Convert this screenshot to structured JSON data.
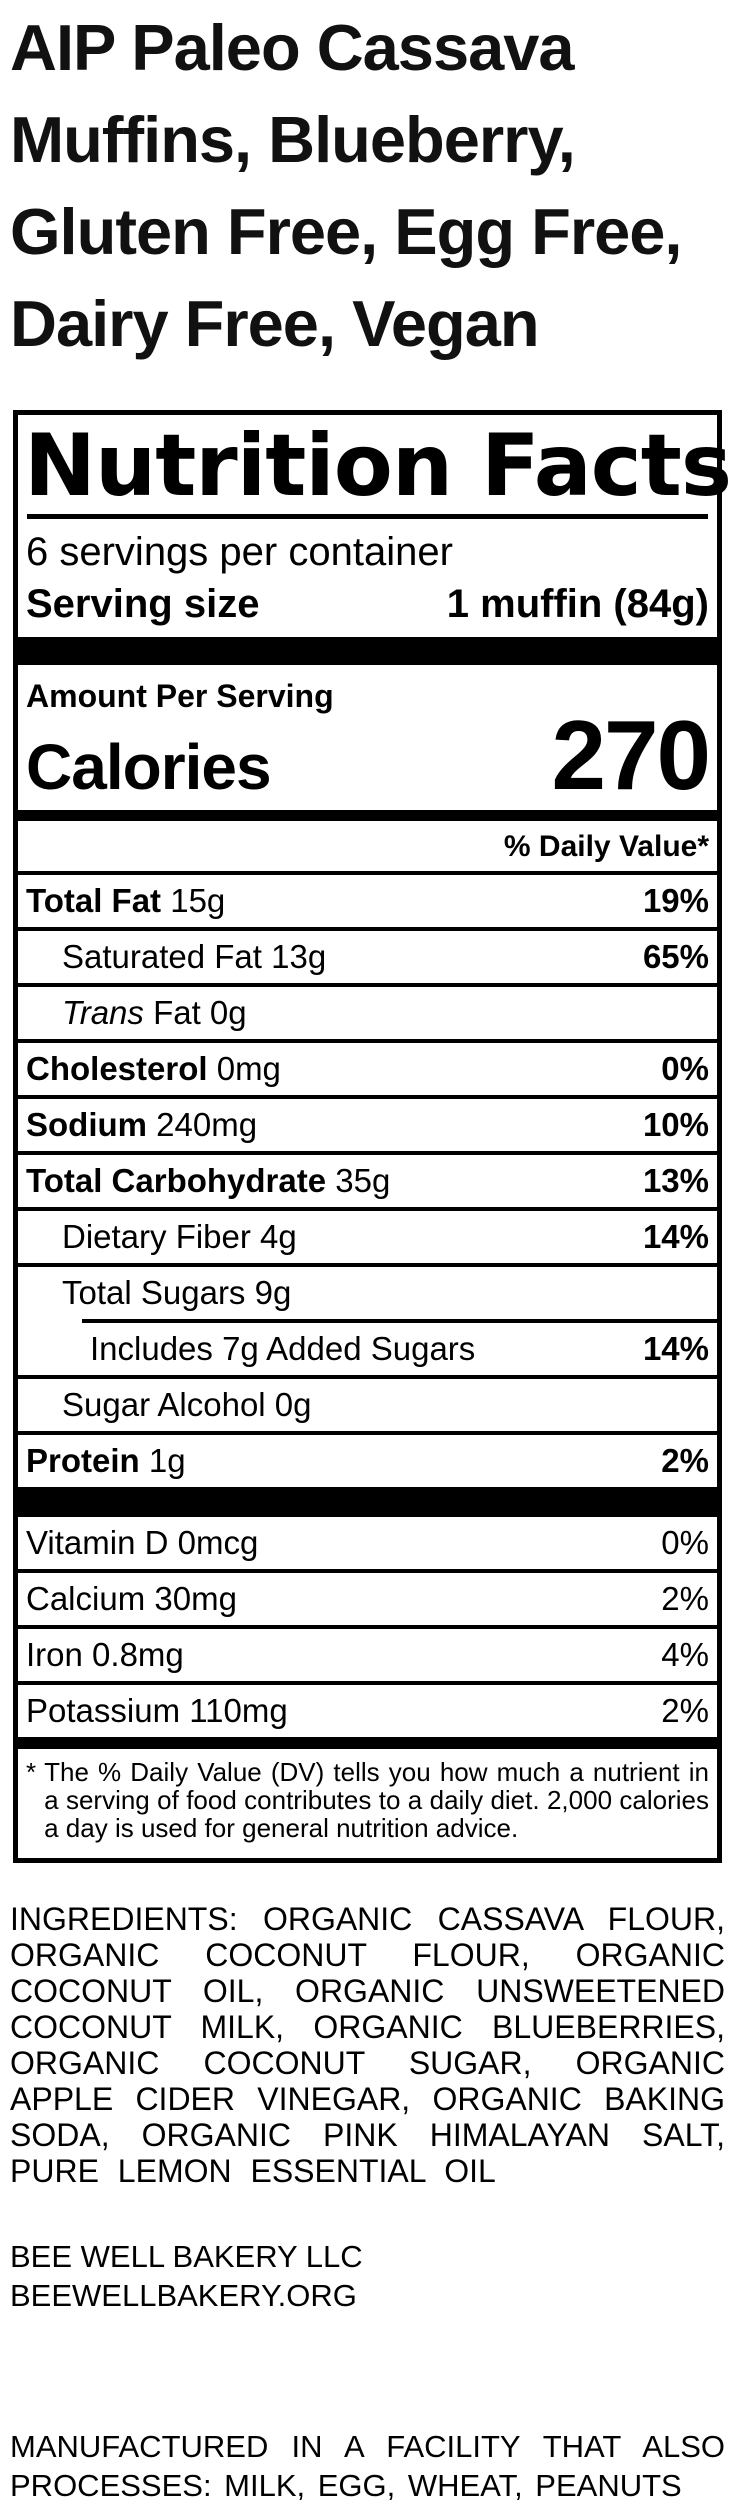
{
  "product": {
    "title": "AIP Paleo Cassava Muffins, Blueberry, Gluten Free, Egg Free, Dairy Free, Vegan"
  },
  "nutrition_facts": {
    "header": "Nutrition Facts",
    "servings_per_container": "6 servings per container",
    "serving_size_label": "Serving size",
    "serving_size_value": "1 muffin (84g)",
    "amount_per_serving_label": "Amount Per Serving",
    "calories_label": "Calories",
    "calories_value": "270",
    "daily_value_header": "% Daily Value*",
    "nutrient_rows": [
      {
        "name": "Total Fat",
        "bold": true,
        "amount": "15g",
        "dv": "19%",
        "indent": 0
      },
      {
        "name": "Saturated Fat",
        "bold": false,
        "amount": "13g",
        "dv": "65%",
        "indent": 1
      },
      {
        "name": "Fat",
        "italic_prefix": "Trans",
        "bold": false,
        "amount": "0g",
        "dv": "",
        "indent": 1
      },
      {
        "name": "Cholesterol",
        "bold": true,
        "amount": "0mg",
        "dv": "0%",
        "indent": 0
      },
      {
        "name": "Sodium",
        "bold": true,
        "amount": "240mg",
        "dv": "10%",
        "indent": 0
      },
      {
        "name": "Total Carbohydrate",
        "bold": true,
        "amount": "35g",
        "dv": "13%",
        "indent": 0
      },
      {
        "name": "Dietary Fiber",
        "bold": false,
        "amount": "4g",
        "dv": "14%",
        "indent": 1
      },
      {
        "name": "Total Sugars",
        "bold": false,
        "amount": "9g",
        "dv": "",
        "indent": 1
      },
      {
        "name": "Includes 7g Added Sugars",
        "bold": false,
        "amount": "",
        "dv": "14%",
        "indent": 2,
        "rule_indent": true
      },
      {
        "name": "Sugar Alcohol",
        "bold": false,
        "amount": "0g",
        "dv": "",
        "indent": 1
      },
      {
        "name": "Protein",
        "bold": true,
        "amount": "1g",
        "dv": "2%",
        "indent": 0
      }
    ],
    "vitamin_rows": [
      {
        "name": "Vitamin D",
        "amount": "0mcg",
        "dv": "0%"
      },
      {
        "name": "Calcium",
        "amount": "30mg",
        "dv": "2%"
      },
      {
        "name": "Iron",
        "amount": "0.8mg",
        "dv": "4%"
      },
      {
        "name": "Potassium",
        "amount": "110mg",
        "dv": "2%"
      }
    ],
    "footnote_marker": "*",
    "footnote": "The % Daily Value (DV) tells you how much a nutrient in a serving of food contributes to a daily diet. 2,000 calories a day is used for general nutrition advice."
  },
  "ingredients_statement": "INGREDIENTS: ORGANIC CASSAVA FLOUR, ORGANIC COCONUT FLOUR, ORGANIC COCONUT OIL, ORGANIC UNSWEETENED COCONUT MILK, ORGANIC BLUEBERRIES, ORGANIC COCONUT SUGAR, ORGANIC APPLE CIDER VINEGAR, ORGANIC BAKING SODA, ORGANIC PINK HIMALAYAN SALT, PURE LEMON ESSENTIAL OIL",
  "manufacturer": {
    "name": "BEE WELL BAKERY LLC",
    "website": "BEEWELLBAKERY.ORG"
  },
  "allergen_statement": "MANUFACTURED IN A FACILITY THAT ALSO PROCESSES: MILK, EGG, WHEAT, PEANUTS",
  "colors": {
    "text": "#000000",
    "background": "#ffffff"
  }
}
